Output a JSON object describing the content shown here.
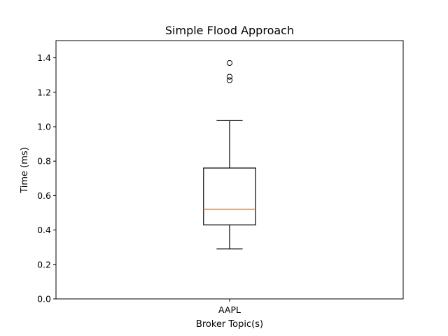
{
  "chart_data": {
    "type": "boxplot",
    "title": "Simple Flood Approach",
    "xlabel": "Broker Topic(s)",
    "ylabel": "Time (ms)",
    "ylim": [
      0,
      1.5
    ],
    "yticks": [
      0.0,
      0.2,
      0.4,
      0.6,
      0.8,
      1.0,
      1.2,
      1.4
    ],
    "ytick_labels": [
      "0.0",
      "0.2",
      "0.4",
      "0.6",
      "0.8",
      "1.0",
      "1.2",
      "1.4"
    ],
    "categories": [
      "AAPL"
    ],
    "boxes": [
      {
        "category": "AAPL",
        "whisker_low": 0.29,
        "q1": 0.43,
        "median": 0.52,
        "q3": 0.76,
        "whisker_high": 1.035,
        "outliers": [
          1.27,
          1.29,
          1.37
        ]
      }
    ],
    "grid": false,
    "colors": {
      "box": "#000000",
      "median": "#ff7f0e"
    }
  }
}
